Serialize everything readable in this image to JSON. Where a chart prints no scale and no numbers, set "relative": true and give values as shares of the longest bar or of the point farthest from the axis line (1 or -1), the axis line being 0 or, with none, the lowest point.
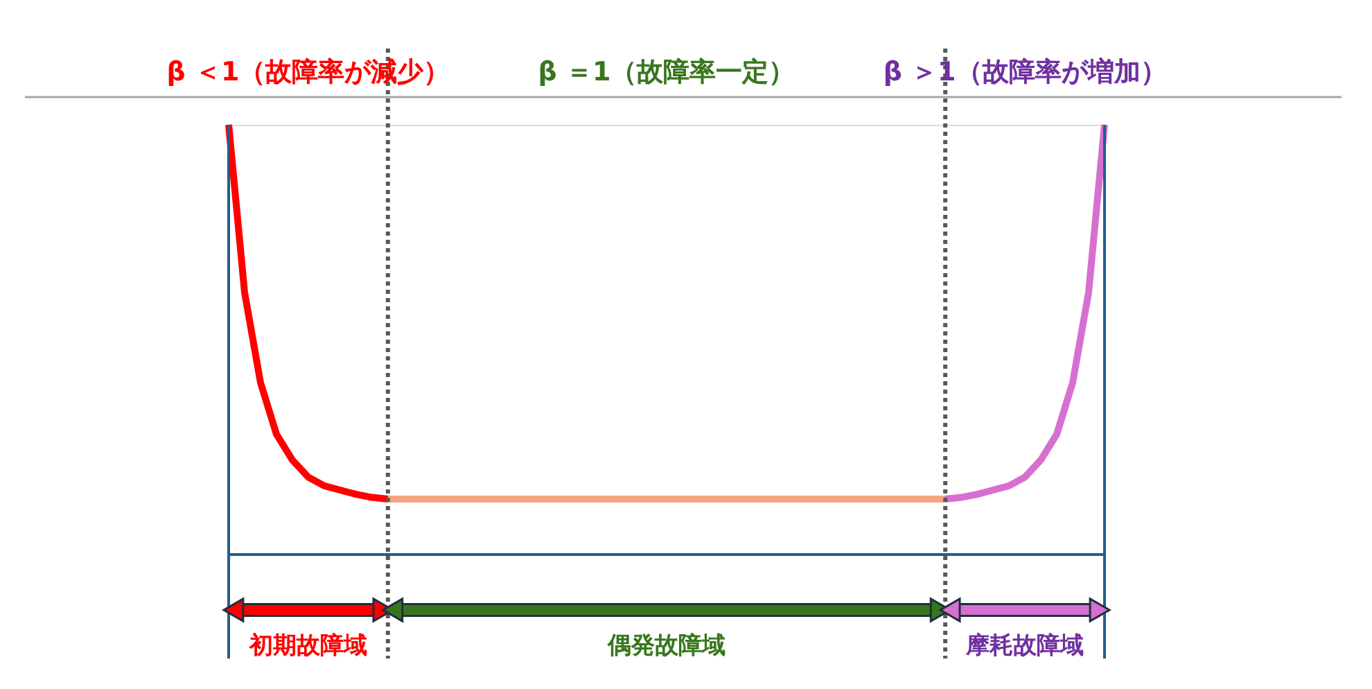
{
  "chart_data": {
    "type": "line",
    "relative": true,
    "tick_labels": false,
    "grid": false,
    "legend": false,
    "line_style": "solid",
    "marker": "none",
    "categories": [
      null,
      null,
      null,
      null,
      null,
      null,
      null,
      null,
      null,
      null,
      null,
      null,
      null,
      null,
      null,
      null,
      null,
      null,
      null,
      null,
      null,
      null,
      null,
      null,
      null,
      null,
      null,
      null,
      null,
      null,
      null,
      null,
      null,
      null,
      null,
      null,
      null,
      null,
      null,
      null,
      null,
      null,
      null,
      null,
      null,
      null,
      null,
      null,
      null,
      null,
      null,
      null,
      null,
      null,
      null,
      null
    ],
    "series": [
      {
        "color": "#ff0000",
        "values": [
          1.0,
          0.61,
          0.4,
          0.28,
          0.22,
          0.18,
          0.16,
          0.15,
          0.14,
          0.133,
          0.129,
          null,
          null,
          null,
          null,
          null,
          null,
          null,
          null,
          null,
          null,
          null,
          null,
          null,
          null,
          null,
          null,
          null,
          null,
          null,
          null,
          null,
          null,
          null,
          null,
          null,
          null,
          null,
          null,
          null,
          null,
          null,
          null,
          null,
          null,
          null,
          null,
          null,
          null,
          null,
          null,
          null,
          null,
          null,
          null,
          null
        ]
      },
      {
        "color": "#f4a582",
        "values": [
          null,
          null,
          null,
          null,
          null,
          null,
          null,
          null,
          null,
          null,
          0.129,
          0.129,
          0.129,
          0.129,
          0.129,
          0.129,
          0.129,
          0.129,
          0.129,
          0.129,
          0.129,
          0.129,
          0.129,
          0.129,
          0.129,
          0.129,
          0.129,
          0.129,
          0.129,
          0.129,
          0.129,
          0.129,
          0.129,
          0.129,
          0.129,
          0.129,
          0.129,
          0.129,
          0.129,
          0.129,
          0.129,
          0.129,
          0.129,
          0.129,
          0.129,
          0.129,
          null,
          null,
          null,
          null,
          null,
          null,
          null,
          null,
          null,
          null
        ]
      },
      {
        "color": "#d670d0",
        "values": [
          null,
          null,
          null,
          null,
          null,
          null,
          null,
          null,
          null,
          null,
          null,
          null,
          null,
          null,
          null,
          null,
          null,
          null,
          null,
          null,
          null,
          null,
          null,
          null,
          null,
          null,
          null,
          null,
          null,
          null,
          null,
          null,
          null,
          null,
          null,
          null,
          null,
          null,
          null,
          null,
          null,
          null,
          null,
          null,
          null,
          0.129,
          0.133,
          0.14,
          0.15,
          0.16,
          0.18,
          0.22,
          0.28,
          0.4,
          0.61,
          1.0
        ]
      }
    ],
    "annotations": [
      "β ＜1（故障率が減少）",
      "β ＝1（故障率一定）",
      "β ＞1（故障率が増加）",
      "初期故障域",
      "偶発故障域",
      "摩耗故障域"
    ]
  }
}
